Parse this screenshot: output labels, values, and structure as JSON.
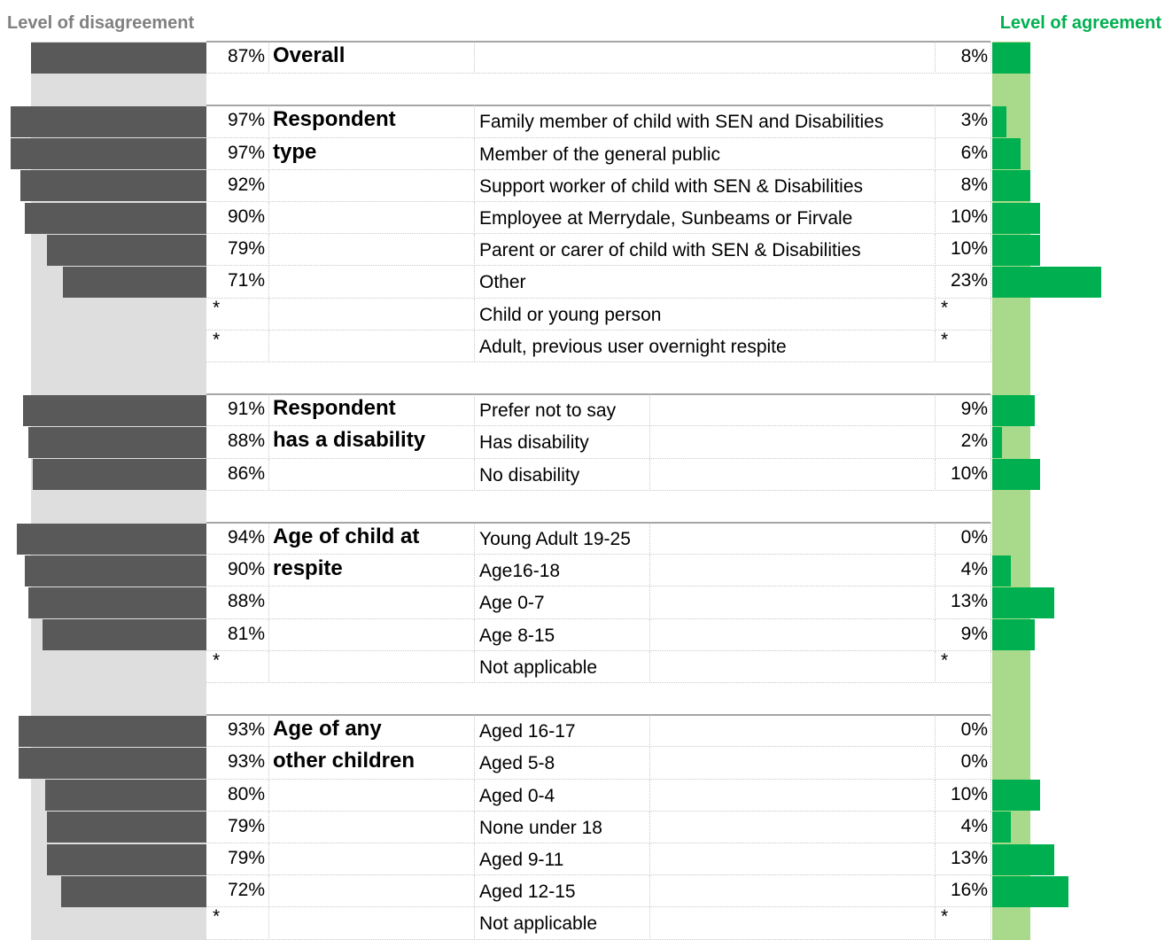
{
  "chart_data": {
    "type": "diverging_bar",
    "left_label": "Level of disagreement",
    "right_label": "Level of agreement",
    "left_color": "#595959",
    "right_color": "#00b050",
    "groups": [
      {
        "name": [
          "Overall"
        ],
        "categories": [
          null
        ],
        "disagree": [
          87
        ],
        "disagree_labels": [
          "87%"
        ],
        "agree": [
          8
        ],
        "agree_labels": [
          "8%"
        ]
      },
      {
        "name": [
          "Respondent",
          "type"
        ],
        "categories": [
          "Family member of child with SEN and Disabilities",
          "Member of the general public",
          "Support worker of child with SEN & Disabilities",
          "Employee at Merrydale, Sunbeams or Firvale",
          "Parent or carer of child with SEN & Disabilities",
          "Other",
          "Child or young person",
          "Adult, previous user overnight respite"
        ],
        "disagree": [
          97,
          97,
          92,
          90,
          79,
          71,
          null,
          null
        ],
        "disagree_labels": [
          "97%",
          "97%",
          "92%",
          "90%",
          "79%",
          "71%",
          "*",
          "*"
        ],
        "agree": [
          3,
          6,
          8,
          10,
          10,
          23,
          null,
          null
        ],
        "agree_labels": [
          "3%",
          "6%",
          "8%",
          "10%",
          "10%",
          "23%",
          "*",
          "*"
        ]
      },
      {
        "name": [
          "Respondent",
          "has a disability"
        ],
        "categories": [
          "Prefer not to say",
          "Has disability",
          "No disability"
        ],
        "disagree": [
          91,
          88,
          86
        ],
        "disagree_labels": [
          "91%",
          "88%",
          "86%"
        ],
        "agree": [
          9,
          2,
          10
        ],
        "agree_labels": [
          "9%",
          "2%",
          "10%"
        ]
      },
      {
        "name": [
          "Age of child at",
          "respite"
        ],
        "categories": [
          "Young Adult 19-25",
          "Age16-18",
          "Age 0-7",
          "Age 8-15",
          "Not applicable"
        ],
        "disagree": [
          94,
          90,
          88,
          81,
          null
        ],
        "disagree_labels": [
          "94%",
          "90%",
          "88%",
          "81%",
          "*"
        ],
        "agree": [
          0,
          4,
          13,
          9,
          null
        ],
        "agree_labels": [
          "0%",
          "4%",
          "13%",
          "9%",
          "*"
        ]
      },
      {
        "name": [
          "Age of any",
          "other children"
        ],
        "categories": [
          "Aged 16-17",
          "Aged 5-8",
          "Aged 0-4",
          "None under 18",
          "Aged 9-11",
          "Aged 12-15",
          "Not applicable"
        ],
        "disagree": [
          93,
          93,
          80,
          79,
          79,
          72,
          null
        ],
        "disagree_labels": [
          "93%",
          "93%",
          "80%",
          "79%",
          "79%",
          "72%",
          "*"
        ],
        "agree": [
          0,
          0,
          10,
          4,
          13,
          16,
          null
        ],
        "agree_labels": [
          "0%",
          "0%",
          "10%",
          "4%",
          "13%",
          "16%",
          "*"
        ]
      }
    ]
  }
}
